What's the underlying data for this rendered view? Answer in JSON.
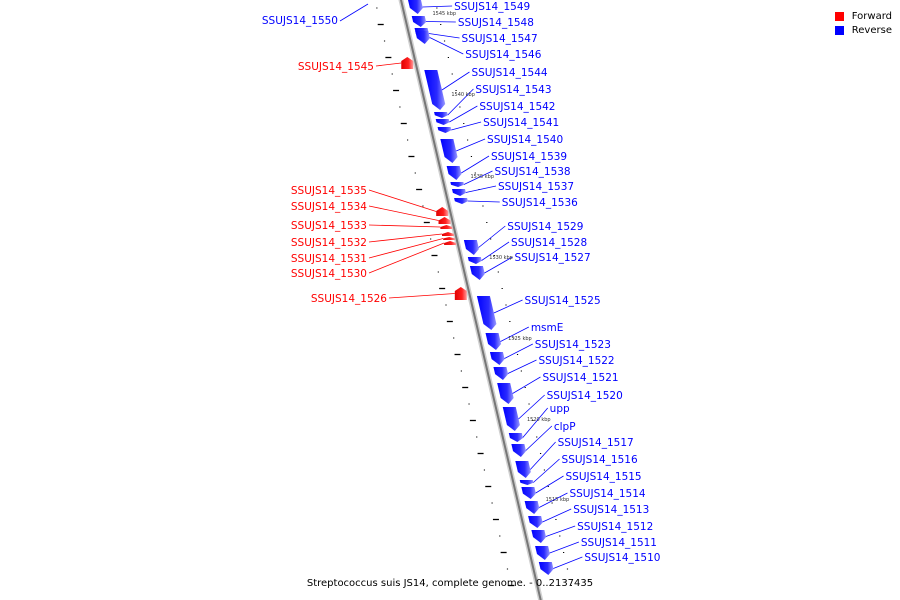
{
  "legend": {
    "forward_label": "Forward",
    "forward_color": "#ff0000",
    "reverse_label": "Reverse",
    "reverse_color": "#0000ff"
  },
  "footer_caption": "Streptococcus suis JS14, complete genome. - 0..2137435",
  "position_labels": [
    "1545 kbp",
    "1540 kbp",
    "1535 kbp",
    "1530 kbp",
    "1525 kbp",
    "1520 kbp",
    "1515 kbp"
  ],
  "reverse_genes": [
    "SSUJS14_1549",
    "SSUJS14_1548",
    "SSUJS14_1547",
    "SSUJS14_1546",
    "SSUJS14_1544",
    "SSUJS14_1543",
    "SSUJS14_1542",
    "SSUJS14_1541",
    "SSUJS14_1540",
    "SSUJS14_1539",
    "SSUJS14_1538",
    "SSUJS14_1537",
    "SSUJS14_1536",
    "SSUJS14_1529",
    "SSUJS14_1528",
    "SSUJS14_1527",
    "SSUJS14_1525",
    "msmE",
    "SSUJS14_1523",
    "SSUJS14_1522",
    "SSUJS14_1521",
    "SSUJS14_1520",
    "upp",
    "clpP",
    "SSUJS14_1517",
    "SSUJS14_1516",
    "SSUJS14_1515",
    "SSUJS14_1514",
    "SSUJS14_1513",
    "SSUJS14_1512",
    "SSUJS14_1511",
    "SSUJS14_1510"
  ],
  "left_reverse_genes": [
    "SSUJS14_1550"
  ],
  "forward_genes": [
    "SSUJS14_1545",
    "SSUJS14_1535",
    "SSUJS14_1534",
    "SSUJS14_1533",
    "SSUJS14_1532",
    "SSUJS14_1531",
    "SSUJS14_1530",
    "SSUJS14_1526"
  ]
}
